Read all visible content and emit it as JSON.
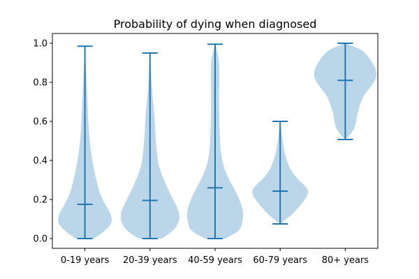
{
  "chart_data": {
    "type": "violin",
    "title": "Probability of dying when diagnosed",
    "xlabel": "",
    "ylabel": "",
    "categories": [
      "0-19 years",
      "20-39 years",
      "40-59 years",
      "60-79 years",
      "80+ years"
    ],
    "ylim": [
      -0.05,
      1.05
    ],
    "yticks": [
      0.0,
      0.2,
      0.4,
      0.6,
      0.8,
      1.0
    ],
    "ytick_labels": [
      "0.0",
      "0.2",
      "0.4",
      "0.6",
      "0.8",
      "1.0"
    ],
    "grid": false,
    "color": "#1f77b4",
    "violins": [
      {
        "category": "0-19 years",
        "min": 0.0,
        "max": 0.985,
        "median": 0.175,
        "density": [
          [
            0.0,
            0.07
          ],
          [
            0.03,
            0.14
          ],
          [
            0.07,
            0.2
          ],
          [
            0.1,
            0.21
          ],
          [
            0.14,
            0.19
          ],
          [
            0.18,
            0.15
          ],
          [
            0.24,
            0.11
          ],
          [
            0.32,
            0.08
          ],
          [
            0.42,
            0.05
          ],
          [
            0.55,
            0.03
          ],
          [
            0.7,
            0.02
          ],
          [
            0.85,
            0.01
          ],
          [
            0.985,
            0.0
          ]
        ]
      },
      {
        "category": "20-39 years",
        "min": 0.0,
        "max": 0.95,
        "median": 0.195,
        "density": [
          [
            0.0,
            0.09
          ],
          [
            0.04,
            0.18
          ],
          [
            0.08,
            0.22
          ],
          [
            0.12,
            0.23
          ],
          [
            0.16,
            0.21
          ],
          [
            0.21,
            0.17
          ],
          [
            0.28,
            0.12
          ],
          [
            0.36,
            0.07
          ],
          [
            0.45,
            0.05
          ],
          [
            0.55,
            0.04
          ],
          [
            0.63,
            0.035
          ],
          [
            0.72,
            0.02
          ],
          [
            0.85,
            0.008
          ],
          [
            0.95,
            0.0
          ]
        ]
      },
      {
        "category": "40-59 years",
        "min": 0.0,
        "max": 0.995,
        "median": 0.26,
        "density": [
          [
            0.0,
            0.08
          ],
          [
            0.04,
            0.19
          ],
          [
            0.08,
            0.21
          ],
          [
            0.13,
            0.22
          ],
          [
            0.18,
            0.2
          ],
          [
            0.24,
            0.16
          ],
          [
            0.31,
            0.1
          ],
          [
            0.38,
            0.06
          ],
          [
            0.46,
            0.04
          ],
          [
            0.56,
            0.035
          ],
          [
            0.66,
            0.03
          ],
          [
            0.76,
            0.03
          ],
          [
            0.86,
            0.035
          ],
          [
            0.94,
            0.025
          ],
          [
            0.995,
            0.0
          ]
        ]
      },
      {
        "category": "60-79 years",
        "min": 0.075,
        "max": 0.6,
        "median": 0.243,
        "density": [
          [
            0.075,
            0.0
          ],
          [
            0.11,
            0.07
          ],
          [
            0.15,
            0.13
          ],
          [
            0.19,
            0.18
          ],
          [
            0.23,
            0.22
          ],
          [
            0.26,
            0.21
          ],
          [
            0.3,
            0.14
          ],
          [
            0.35,
            0.08
          ],
          [
            0.4,
            0.05
          ],
          [
            0.45,
            0.03
          ],
          [
            0.52,
            0.015
          ],
          [
            0.6,
            0.0
          ]
        ]
      },
      {
        "category": "80+ years",
        "min": 0.507,
        "max": 1.0,
        "median": 0.81,
        "density": [
          [
            0.507,
            0.0
          ],
          [
            0.54,
            0.05
          ],
          [
            0.58,
            0.08
          ],
          [
            0.63,
            0.09
          ],
          [
            0.68,
            0.11
          ],
          [
            0.73,
            0.14
          ],
          [
            0.78,
            0.2
          ],
          [
            0.82,
            0.24
          ],
          [
            0.86,
            0.24
          ],
          [
            0.9,
            0.21
          ],
          [
            0.94,
            0.17
          ],
          [
            0.97,
            0.12
          ],
          [
            1.0,
            0.0
          ]
        ]
      }
    ]
  }
}
